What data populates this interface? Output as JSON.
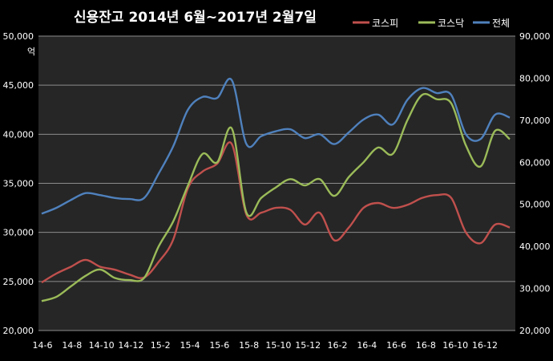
{
  "chart_data": {
    "type": "line",
    "title": "신용잔고 2014년 6월~2017년 2월7일",
    "left_unit": "억",
    "x_ticks": [
      "14-6",
      "14-8",
      "14-10",
      "14-12",
      "15-2",
      "15-4",
      "15-6",
      "15-8",
      "15-10",
      "15-12",
      "16-2",
      "16-4",
      "16-6",
      "16-8",
      "16-10",
      "16-12"
    ],
    "y_left": {
      "min": 20000,
      "max": 50000,
      "ticks": [
        "20,000",
        "25,000",
        "30,000",
        "35,000",
        "40,000",
        "45,000",
        "50,000"
      ]
    },
    "y_right": {
      "min": 20000,
      "max": 90000,
      "ticks": [
        "20,000",
        "30,000",
        "40,000",
        "50,000",
        "60,000",
        "70,000",
        "80,000",
        "90,000"
      ]
    },
    "grid": true,
    "legend_position": "top-right",
    "series": [
      {
        "name": "코스피",
        "color": "#c0504d",
        "axis": "left",
        "points": [
          [
            "2014-06",
            24900
          ],
          [
            "2014-07",
            25800
          ],
          [
            "2014-08",
            26500
          ],
          [
            "2014-09",
            27200
          ],
          [
            "2014-10",
            26500
          ],
          [
            "2014-11",
            26200
          ],
          [
            "2014-12",
            25700
          ],
          [
            "2015-01",
            25400
          ],
          [
            "2015-02",
            27000
          ],
          [
            "2015-03",
            29300
          ],
          [
            "2015-04",
            34500
          ],
          [
            "2015-05",
            36200
          ],
          [
            "2015-06",
            37000
          ],
          [
            "2015-07",
            39000
          ],
          [
            "2015-08",
            31800
          ],
          [
            "2015-09",
            32000
          ],
          [
            "2015-10",
            32500
          ],
          [
            "2015-11",
            32300
          ],
          [
            "2015-12",
            30800
          ],
          [
            "2016-01",
            32000
          ],
          [
            "2016-02",
            29200
          ],
          [
            "2016-03",
            30500
          ],
          [
            "2016-04",
            32500
          ],
          [
            "2016-05",
            33000
          ],
          [
            "2016-06",
            32500
          ],
          [
            "2016-07",
            32800
          ],
          [
            "2016-08",
            33500
          ],
          [
            "2016-09",
            33800
          ],
          [
            "2016-10",
            33500
          ],
          [
            "2016-11",
            30000
          ],
          [
            "2016-12",
            28900
          ],
          [
            "2017-01",
            30800
          ],
          [
            "2017-02",
            30500
          ]
        ]
      },
      {
        "name": "코스닥",
        "color": "#9bbb59",
        "axis": "right",
        "points": [
          [
            "2014-06",
            27000
          ],
          [
            "2014-07",
            28000
          ],
          [
            "2014-08",
            30500
          ],
          [
            "2014-09",
            33000
          ],
          [
            "2014-10",
            34500
          ],
          [
            "2014-11",
            32500
          ],
          [
            "2014-12",
            32000
          ],
          [
            "2015-01",
            32500
          ],
          [
            "2015-02",
            40000
          ],
          [
            "2015-03",
            46000
          ],
          [
            "2015-04",
            54500
          ],
          [
            "2015-05",
            62000
          ],
          [
            "2015-06",
            60000
          ],
          [
            "2015-07",
            68000
          ],
          [
            "2015-08",
            48000
          ],
          [
            "2015-09",
            51500
          ],
          [
            "2015-10",
            54000
          ],
          [
            "2015-11",
            56000
          ],
          [
            "2015-12",
            54500
          ],
          [
            "2016-01",
            56000
          ],
          [
            "2016-02",
            52000
          ],
          [
            "2016-03",
            56500
          ],
          [
            "2016-04",
            60000
          ],
          [
            "2016-05",
            63500
          ],
          [
            "2016-06",
            62000
          ],
          [
            "2016-07",
            70000
          ],
          [
            "2016-08",
            76000
          ],
          [
            "2016-09",
            75000
          ],
          [
            "2016-10",
            74000
          ],
          [
            "2016-11",
            64000
          ],
          [
            "2016-12",
            59000
          ],
          [
            "2017-01",
            67500
          ],
          [
            "2017-02",
            65500
          ]
        ]
      },
      {
        "name": "전체",
        "color": "#4f81bd",
        "axis": "left",
        "points": [
          [
            "2014-06",
            31900
          ],
          [
            "2014-07",
            32500
          ],
          [
            "2014-08",
            33300
          ],
          [
            "2014-09",
            34000
          ],
          [
            "2014-10",
            33800
          ],
          [
            "2014-11",
            33500
          ],
          [
            "2014-12",
            33400
          ],
          [
            "2015-01",
            33500
          ],
          [
            "2015-02",
            36000
          ],
          [
            "2015-03",
            38800
          ],
          [
            "2015-04",
            42500
          ],
          [
            "2015-05",
            43800
          ],
          [
            "2015-06",
            43700
          ],
          [
            "2015-07",
            45500
          ],
          [
            "2015-08",
            39000
          ],
          [
            "2015-09",
            39800
          ],
          [
            "2015-10",
            40300
          ],
          [
            "2015-11",
            40500
          ],
          [
            "2015-12",
            39600
          ],
          [
            "2016-01",
            40000
          ],
          [
            "2016-02",
            39000
          ],
          [
            "2016-03",
            40200
          ],
          [
            "2016-04",
            41500
          ],
          [
            "2016-05",
            42000
          ],
          [
            "2016-06",
            41000
          ],
          [
            "2016-07",
            43500
          ],
          [
            "2016-08",
            44700
          ],
          [
            "2016-09",
            44200
          ],
          [
            "2016-10",
            44000
          ],
          [
            "2016-11",
            40000
          ],
          [
            "2016-12",
            39500
          ],
          [
            "2017-01",
            42000
          ],
          [
            "2017-02",
            41700
          ]
        ]
      }
    ]
  }
}
